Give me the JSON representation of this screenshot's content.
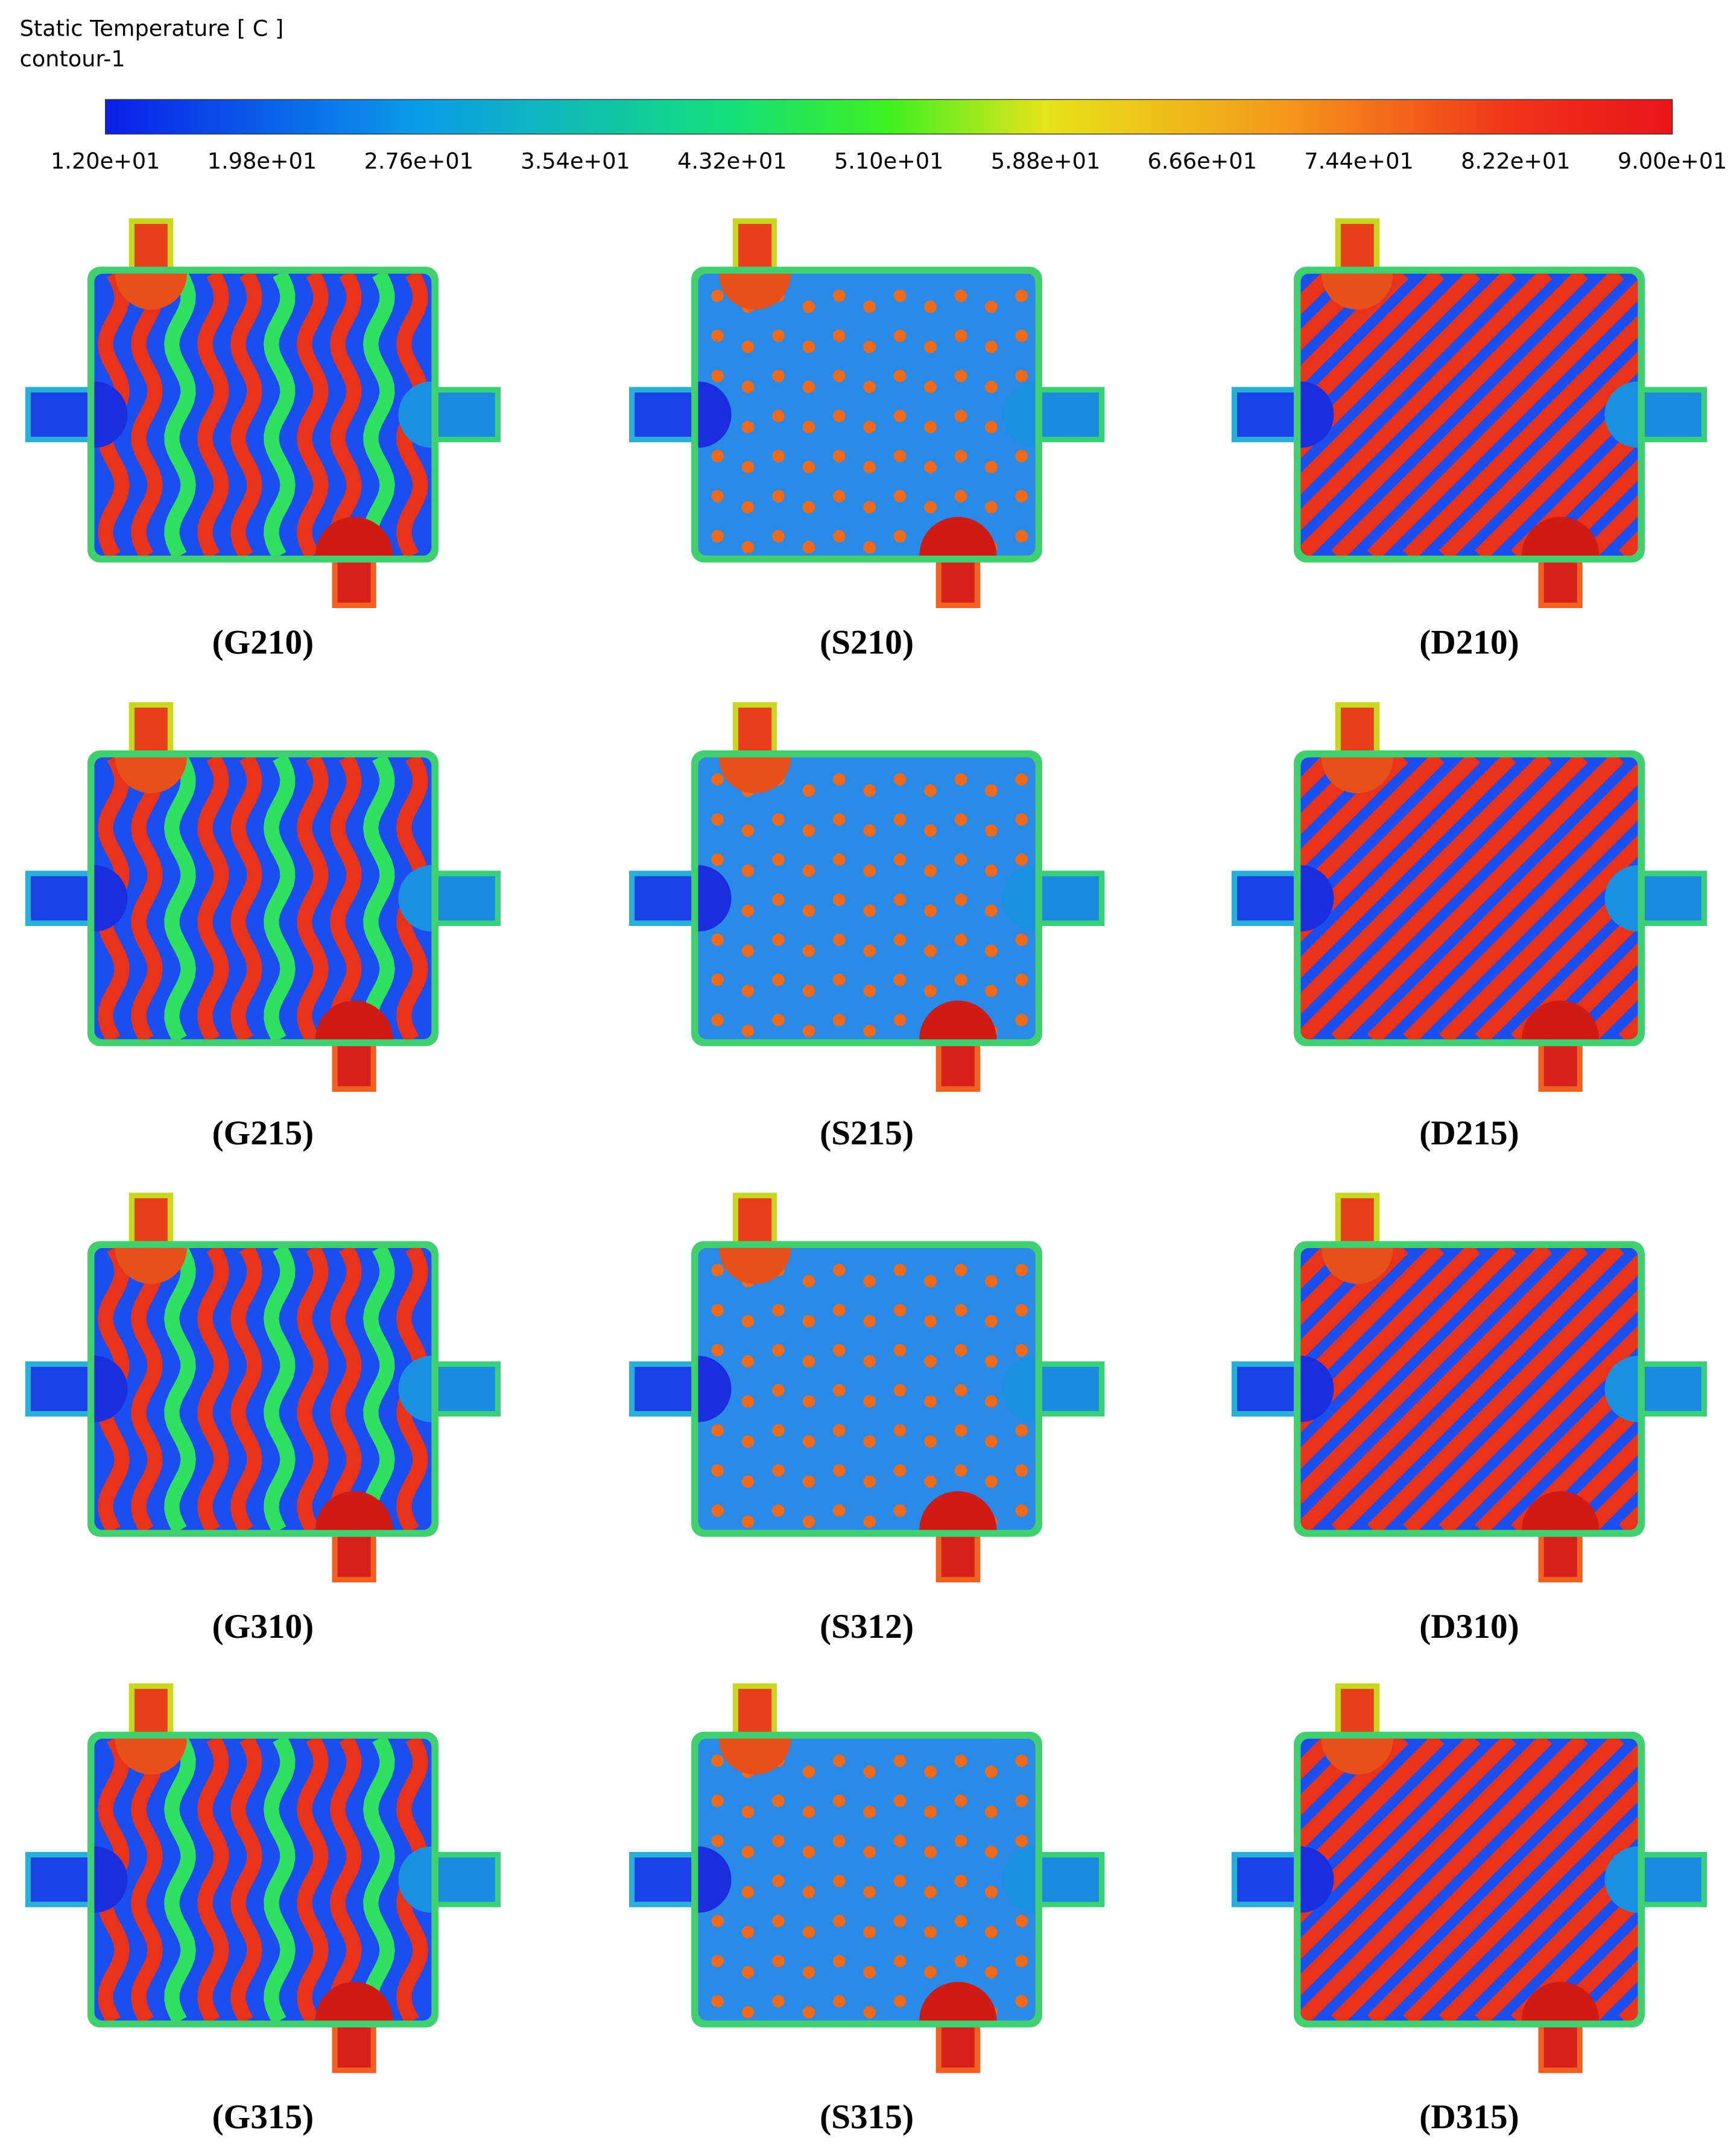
{
  "legend": {
    "title": "Static Temperature [ C ]",
    "subtitle": "contour-1",
    "ticks": [
      "1.20e+01",
      "1.98e+01",
      "2.76e+01",
      "3.54e+01",
      "4.32e+01",
      "5.10e+01",
      "5.88e+01",
      "6.66e+01",
      "7.44e+01",
      "8.22e+01",
      "9.00e+01"
    ]
  },
  "panels": [
    {
      "label": "(G210)"
    },
    {
      "label": "(S210)"
    },
    {
      "label": "(D210)"
    },
    {
      "label": "(G215)"
    },
    {
      "label": "(S215)"
    },
    {
      "label": "(D215)"
    },
    {
      "label": "(G310)"
    },
    {
      "label": "(S312)"
    },
    {
      "label": "(D310)"
    },
    {
      "label": "(G315)"
    },
    {
      "label": "(S315)"
    },
    {
      "label": "(D315)"
    }
  ]
}
